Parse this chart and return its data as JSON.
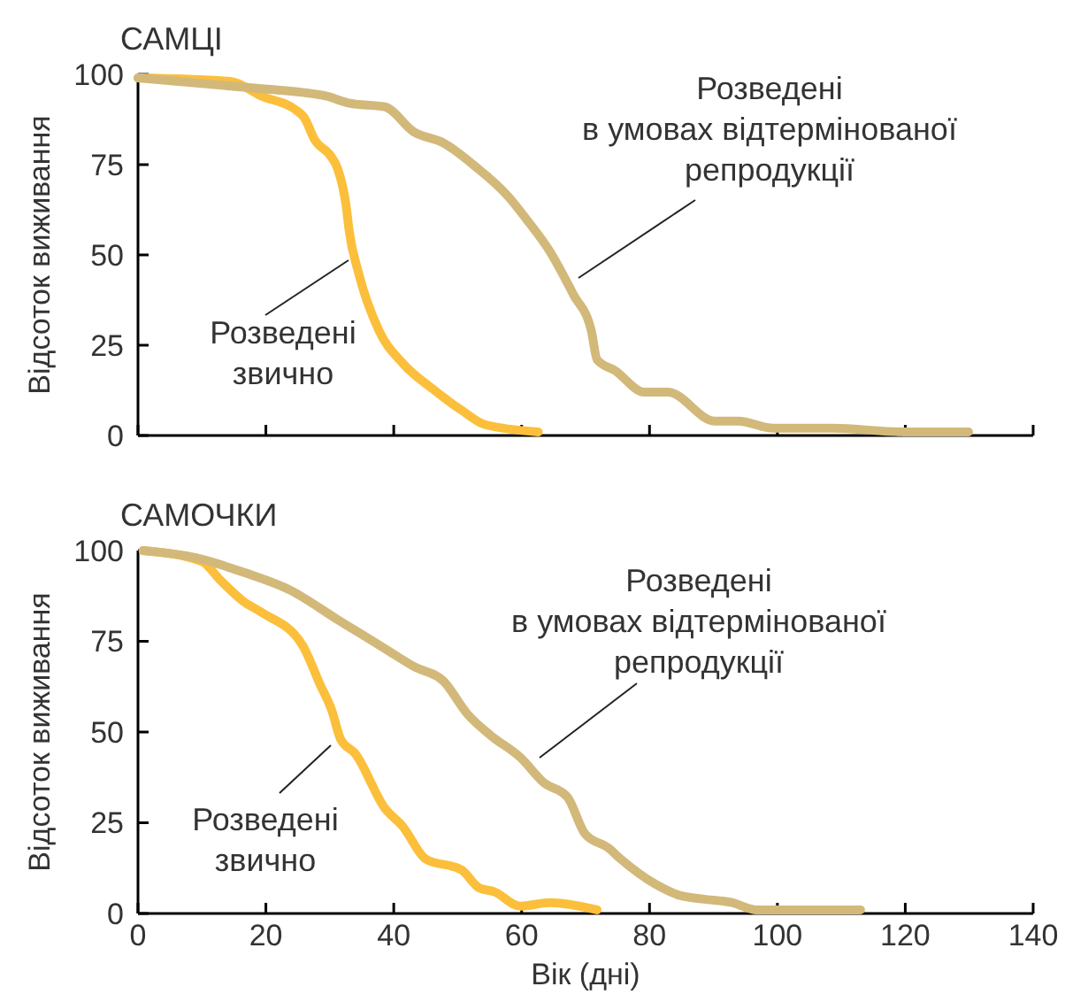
{
  "chart_data": [
    {
      "type": "line",
      "title": "САМЦІ",
      "ylabel": "Відсоток виживання",
      "xlim": [
        0,
        140
      ],
      "xticks": [
        0,
        20,
        40,
        60,
        80,
        100,
        120,
        140
      ],
      "ylim": [
        0,
        100
      ],
      "yticks": [
        0,
        25,
        50,
        75,
        100
      ],
      "tick_labels": "y",
      "grid": false,
      "marker": "none",
      "line_style": "solid",
      "series": [
        {
          "name": "Розведені звично",
          "color": "#fbbf3c",
          "x": [
            0,
            14.6,
            19.3,
            24.8,
            26,
            27.6,
            30.3,
            31.2,
            32.6,
            33,
            34.5,
            37.7,
            41.4,
            46,
            50.6,
            54.3,
            62.6
          ],
          "values": [
            99,
            98,
            94,
            90,
            88,
            82,
            77,
            74,
            63,
            57,
            45,
            29,
            20,
            13,
            7,
            3,
            1
          ]
        },
        {
          "name": "Розведені в умовах відтермінованої репродукції",
          "color": "#d2b97a",
          "x": [
            0,
            19.4,
            25.7,
            29.4,
            33.1,
            38.6,
            43.2,
            47.8,
            52.4,
            58,
            60.7,
            64.4,
            68.1,
            70.9,
            71.8,
            74.6,
            79.2,
            82.9,
            90.2,
            93.9,
            99.4,
            108.7,
            119.7,
            129.9
          ],
          "values": [
            99,
            96,
            95,
            94,
            92,
            91,
            84,
            81,
            75,
            66,
            60,
            51,
            39,
            29,
            21,
            18,
            12,
            12,
            4,
            4,
            2,
            2,
            1,
            1
          ]
        }
      ]
    },
    {
      "type": "line",
      "title": "САМОЧКИ",
      "xlabel": "Вік (дні)",
      "ylabel": "Відсоток виживання",
      "xlim": [
        0,
        140
      ],
      "xticks": [
        0,
        20,
        40,
        60,
        80,
        100,
        120,
        140
      ],
      "ylim": [
        0,
        100
      ],
      "yticks": [
        0,
        25,
        50,
        75,
        100
      ],
      "grid": false,
      "marker": "none",
      "line_style": "solid",
      "series": [
        {
          "name": "Розведені звично",
          "color": "#fbbf3c",
          "x": [
            0.8,
            10,
            12.8,
            16.5,
            19.3,
            25.7,
            28.5,
            30.3,
            31.7,
            34,
            38.6,
            41.4,
            45,
            50.6,
            53.4,
            55.7,
            59.8,
            64.4,
            71.8
          ],
          "values": [
            100,
            97,
            92,
            86,
            83,
            74,
            63,
            56,
            48,
            44,
            29,
            24,
            15,
            12,
            7,
            6,
            2,
            3,
            1
          ]
        },
        {
          "name": "Розведені в умовах відтермінованої репродукції",
          "color": "#d2b97a",
          "x": [
            0.8,
            9.1,
            16.5,
            23.9,
            31.2,
            34.9,
            38.6,
            43.2,
            47.8,
            51.5,
            55.2,
            59.8,
            63.5,
            67.2,
            69.9,
            73.6,
            75.5,
            81,
            84.7,
            88.3,
            92.9,
            96.6,
            113
          ],
          "values": [
            100,
            98,
            94,
            89,
            81,
            77,
            73,
            68,
            64,
            55,
            49,
            43,
            36,
            32,
            22,
            18,
            15,
            8,
            5,
            4,
            3,
            1,
            1
          ]
        }
      ]
    }
  ]
}
